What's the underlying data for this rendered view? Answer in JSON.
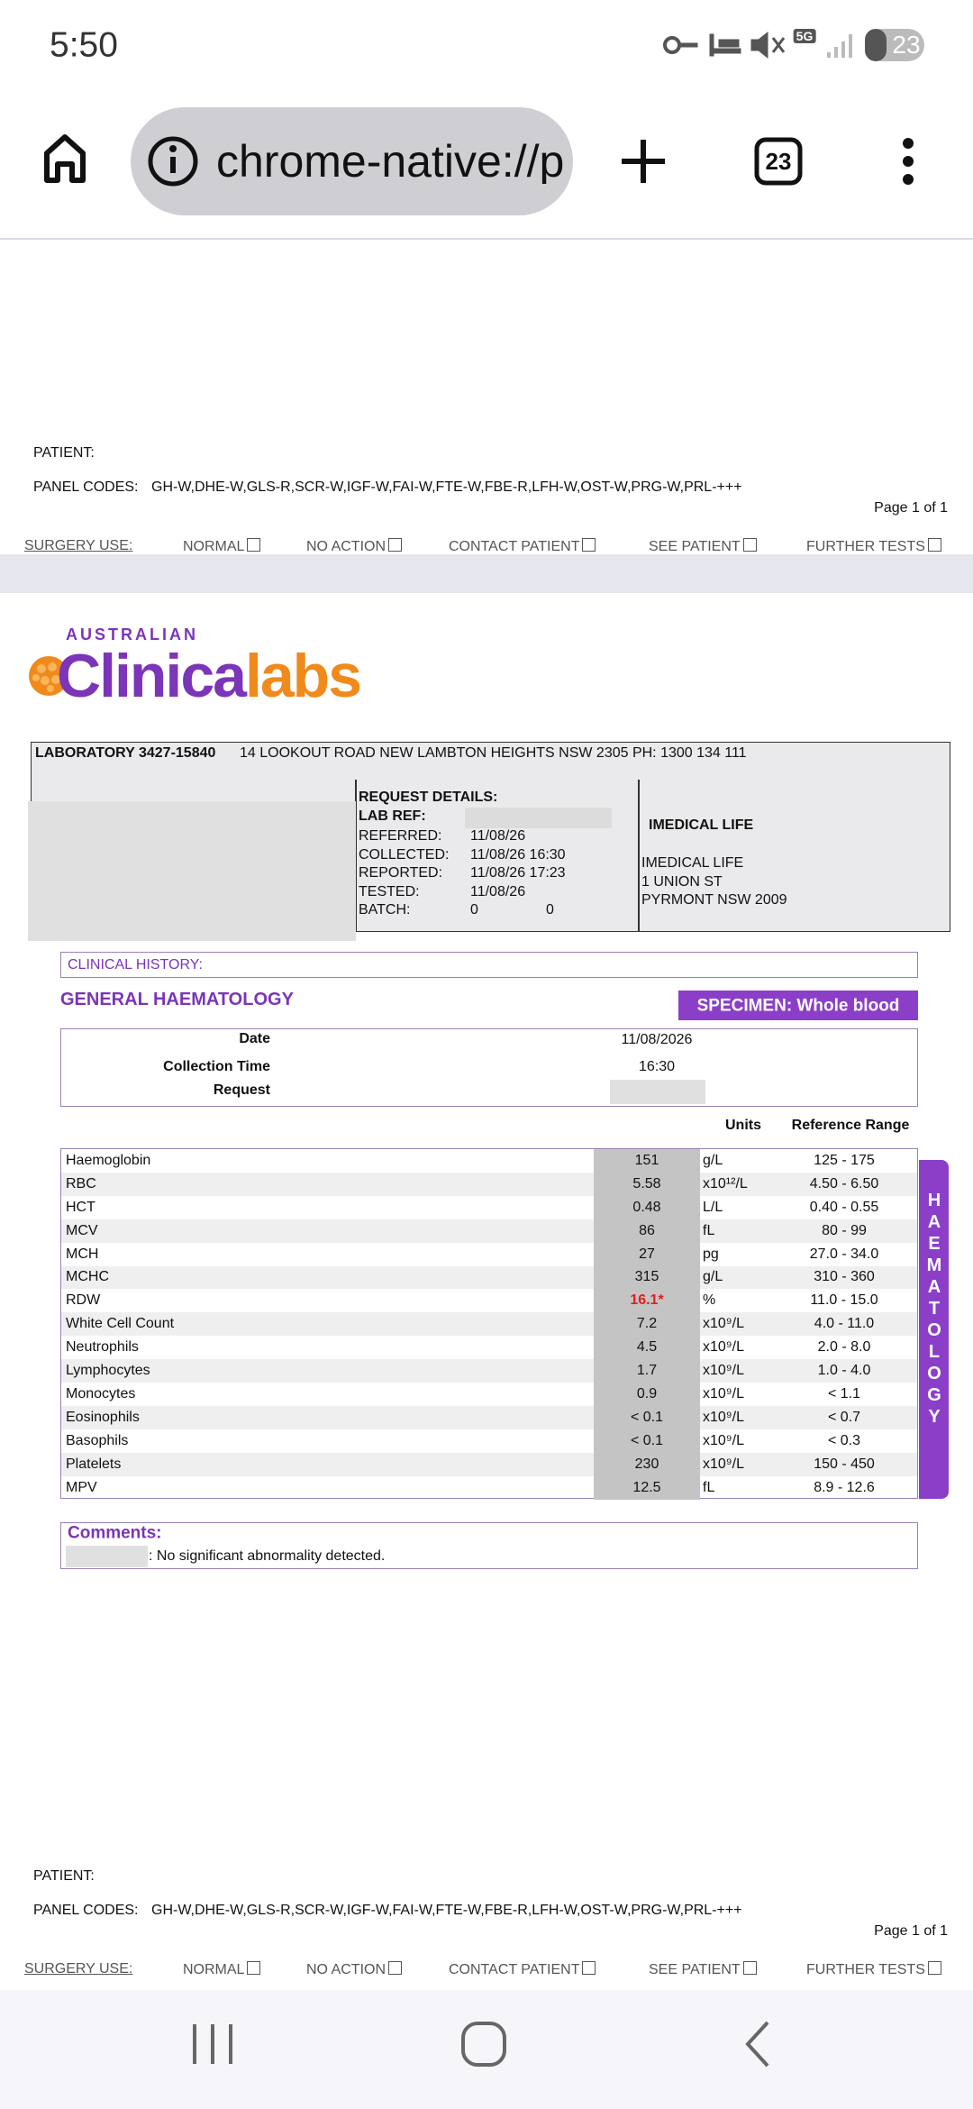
{
  "status": {
    "time": "5:50",
    "network": "5G",
    "battery": "23"
  },
  "browser": {
    "url": "chrome-native://p",
    "tabs": "23"
  },
  "footer": {
    "patient": "PATIENT:",
    "panel_label": "PANEL CODES:",
    "panel_codes": "GH-W,DHE-W,GLS-R,SCR-W,IGF-W,FAI-W,FTE-W,FBE-R,LFH-W,OST-W,PRG-W,PRL-+++",
    "page": "Page 1 of  1",
    "surgery": "SURGERY USE:",
    "options": [
      "NORMAL",
      "NO ACTION",
      "CONTACT PATIENT",
      "SEE PATIENT",
      "FURTHER TESTS"
    ]
  },
  "logo": {
    "top": "AUSTRALIAN",
    "left": "Clinica",
    "right": "labs"
  },
  "lab": {
    "name": "LABORATORY 3427-15840",
    "address": "14 LOOKOUT ROAD  NEW LAMBTON HEIGHTS  NSW  2305  PH: 1300 134 111"
  },
  "request": {
    "title": "REQUEST DETAILS:",
    "lab_ref": "LAB REF:",
    "rows": [
      [
        "REFERRED:",
        "11/08/26"
      ],
      [
        "COLLECTED:",
        "11/08/26 16:30"
      ],
      [
        "REPORTED:",
        "11/08/26 17:23"
      ],
      [
        "TESTED:",
        "11/08/26"
      ]
    ],
    "batch": [
      "BATCH:",
      "0",
      "0"
    ]
  },
  "doctor": {
    "name": "IMEDICAL LIFE",
    "address": [
      "IMEDICAL LIFE",
      "1 UNION ST",
      "PYRMONT NSW 2009"
    ]
  },
  "clinical_history": "CLINICAL HISTORY:",
  "section": "GENERAL HAEMATOLOGY",
  "specimen": "SPECIMEN: Whole blood",
  "info": {
    "date_label": "Date",
    "date": "11/08/2026",
    "time_label": "Collection Time",
    "time": "16:30",
    "request_label": "Request"
  },
  "columns": {
    "units": "Units",
    "range": "Reference Range"
  },
  "table": {
    "rows": [
      [
        "Haemoglobin",
        "151",
        "g/L",
        "125 - 175"
      ],
      [
        "RBC",
        "5.58",
        "x10¹²/L",
        "4.50 - 6.50"
      ],
      [
        "HCT",
        "0.48",
        "L/L",
        "0.40 - 0.55"
      ],
      [
        "MCV",
        "86",
        "fL",
        "80 - 99"
      ],
      [
        "MCH",
        "27",
        "pg",
        "27.0 - 34.0"
      ],
      [
        "MCHC",
        "315",
        "g/L",
        "310 - 360"
      ],
      [
        "RDW",
        "16.1*",
        "%",
        "11.0 - 15.0"
      ],
      [
        "White Cell Count",
        "7.2",
        "x10⁹/L",
        "4.0 - 11.0"
      ],
      [
        "Neutrophils",
        "4.5",
        "x10⁹/L",
        "2.0 - 8.0"
      ],
      [
        "Lymphocytes",
        "1.7",
        "x10⁹/L",
        "1.0 - 4.0"
      ],
      [
        "Monocytes",
        "0.9",
        "x10⁹/L",
        "< 1.1"
      ],
      [
        "Eosinophils",
        "< 0.1",
        "x10⁹/L",
        "< 0.7"
      ],
      [
        "Basophils",
        "< 0.1",
        "x10⁹/L",
        "< 0.3"
      ],
      [
        "Platelets",
        "230",
        "x10⁹/L",
        "150 - 450"
      ],
      [
        "MPV",
        "12.5",
        "fL",
        "8.9 - 12.6"
      ]
    ],
    "flagged": [
      6
    ]
  },
  "side_label": "HAEMATOLOGY",
  "comments": {
    "title": "Comments:",
    "text": ": No significant abnormality detected."
  }
}
